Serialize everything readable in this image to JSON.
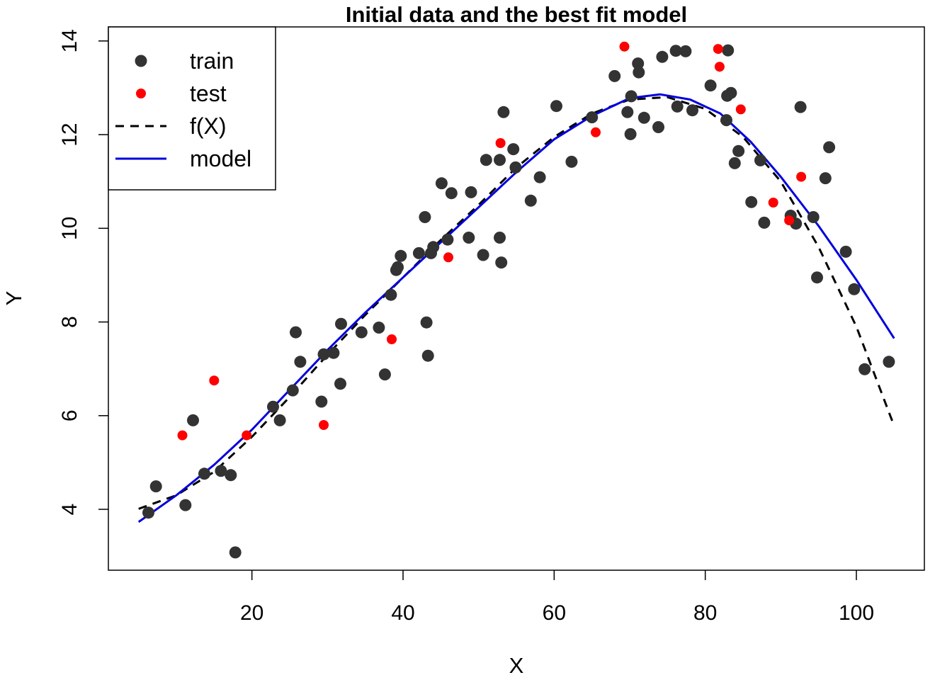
{
  "chart_data": {
    "type": "scatter",
    "title": "Initial data and the best fit model",
    "xlabel": "X",
    "ylabel": "Y",
    "xlim": [
      1,
      109
    ],
    "ylim": [
      2.7,
      14.3
    ],
    "x_ticks": [
      20,
      40,
      60,
      80,
      100
    ],
    "y_ticks": [
      4,
      6,
      8,
      10,
      12,
      14
    ],
    "grid": false,
    "legend_position": "top-left",
    "legend": [
      {
        "label": "train",
        "kind": "point",
        "color": "#333333"
      },
      {
        "label": "test",
        "kind": "point",
        "color": "#ff0000"
      },
      {
        "label": "f(X)",
        "kind": "dashed-line",
        "color": "#000000"
      },
      {
        "label": "model",
        "kind": "solid-line",
        "color": "#0000dd"
      }
    ],
    "series": [
      {
        "name": "train",
        "type": "scatter",
        "color": "#333333",
        "points": [
          [
            6.3,
            3.93
          ],
          [
            7.3,
            4.49
          ],
          [
            11.2,
            4.09
          ],
          [
            12.2,
            5.9
          ],
          [
            13.7,
            4.76
          ],
          [
            15.9,
            4.82
          ],
          [
            17.2,
            4.73
          ],
          [
            17.8,
            3.08
          ],
          [
            22.8,
            6.19
          ],
          [
            23.7,
            5.9
          ],
          [
            25.4,
            6.54
          ],
          [
            25.8,
            7.78
          ],
          [
            26.4,
            7.15
          ],
          [
            29.2,
            6.3
          ],
          [
            29.5,
            7.31
          ],
          [
            30.8,
            7.34
          ],
          [
            31.7,
            6.68
          ],
          [
            31.8,
            7.96
          ],
          [
            34.5,
            7.78
          ],
          [
            36.8,
            7.88
          ],
          [
            37.6,
            6.88
          ],
          [
            38.4,
            8.58
          ],
          [
            39.1,
            9.11
          ],
          [
            39.3,
            9.17
          ],
          [
            39.7,
            9.41
          ],
          [
            42.1,
            9.47
          ],
          [
            42.9,
            10.24
          ],
          [
            43.1,
            7.99
          ],
          [
            43.3,
            7.28
          ],
          [
            43.7,
            9.47
          ],
          [
            44.0,
            9.6
          ],
          [
            45.1,
            10.96
          ],
          [
            45.9,
            9.76
          ],
          [
            46.4,
            10.75
          ],
          [
            48.7,
            9.8
          ],
          [
            49.0,
            10.77
          ],
          [
            50.6,
            9.43
          ],
          [
            51.0,
            11.46
          ],
          [
            52.8,
            11.46
          ],
          [
            52.8,
            9.8
          ],
          [
            53.0,
            9.27
          ],
          [
            53.3,
            12.48
          ],
          [
            54.6,
            11.69
          ],
          [
            54.9,
            11.3
          ],
          [
            56.9,
            10.59
          ],
          [
            58.1,
            11.09
          ],
          [
            60.3,
            12.61
          ],
          [
            62.3,
            11.42
          ],
          [
            65.0,
            12.37
          ],
          [
            68.0,
            13.25
          ],
          [
            69.7,
            12.48
          ],
          [
            70.1,
            12.01
          ],
          [
            70.2,
            12.82
          ],
          [
            71.1,
            13.52
          ],
          [
            71.2,
            13.33
          ],
          [
            71.9,
            12.36
          ],
          [
            73.8,
            12.16
          ],
          [
            74.3,
            13.66
          ],
          [
            76.1,
            13.79
          ],
          [
            76.3,
            12.6
          ],
          [
            77.4,
            13.78
          ],
          [
            78.3,
            12.52
          ],
          [
            80.7,
            13.05
          ],
          [
            82.8,
            12.31
          ],
          [
            82.9,
            12.83
          ],
          [
            83.0,
            13.8
          ],
          [
            83.4,
            12.89
          ],
          [
            83.9,
            11.39
          ],
          [
            84.4,
            11.65
          ],
          [
            86.1,
            10.56
          ],
          [
            87.3,
            11.45
          ],
          [
            87.8,
            10.12
          ],
          [
            91.3,
            10.27
          ],
          [
            92.0,
            10.1
          ],
          [
            92.6,
            12.59
          ],
          [
            94.3,
            10.24
          ],
          [
            94.8,
            8.95
          ],
          [
            95.9,
            11.07
          ],
          [
            96.4,
            11.73
          ],
          [
            98.6,
            9.5
          ],
          [
            99.7,
            8.7
          ],
          [
            101.1,
            6.99
          ],
          [
            104.3,
            7.15
          ]
        ]
      },
      {
        "name": "test",
        "type": "scatter",
        "color": "#ff0000",
        "points": [
          [
            10.8,
            5.58
          ],
          [
            15.0,
            6.75
          ],
          [
            19.3,
            5.58
          ],
          [
            29.5,
            5.8
          ],
          [
            38.5,
            7.63
          ],
          [
            46.0,
            9.38
          ],
          [
            52.9,
            11.82
          ],
          [
            65.5,
            12.05
          ],
          [
            69.3,
            13.88
          ],
          [
            81.7,
            13.83
          ],
          [
            81.9,
            13.45
          ],
          [
            84.7,
            12.54
          ],
          [
            89.0,
            10.55
          ],
          [
            91.1,
            10.17
          ],
          [
            92.7,
            11.1
          ]
        ]
      },
      {
        "name": "f(X)",
        "type": "line",
        "style": "dashed",
        "color": "#000000",
        "points": [
          [
            5,
            4.01
          ],
          [
            10,
            4.3
          ],
          [
            15,
            4.8
          ],
          [
            20,
            5.55
          ],
          [
            25,
            6.4
          ],
          [
            30,
            7.3
          ],
          [
            35,
            8.15
          ],
          [
            40,
            8.95
          ],
          [
            45,
            9.75
          ],
          [
            50,
            10.5
          ],
          [
            55,
            11.3
          ],
          [
            60,
            11.95
          ],
          [
            65,
            12.45
          ],
          [
            70,
            12.75
          ],
          [
            75,
            12.8
          ],
          [
            80,
            12.55
          ],
          [
            85,
            11.95
          ],
          [
            90,
            11.0
          ],
          [
            95,
            9.6
          ],
          [
            100,
            7.9
          ],
          [
            105,
            5.78
          ]
        ]
      },
      {
        "name": "model",
        "type": "line",
        "style": "solid",
        "color": "#0000dd",
        "points": [
          [
            5,
            3.73
          ],
          [
            10,
            4.3
          ],
          [
            15,
            4.95
          ],
          [
            20,
            5.7
          ],
          [
            25,
            6.55
          ],
          [
            30,
            7.4
          ],
          [
            35,
            8.2
          ],
          [
            40,
            8.95
          ],
          [
            45,
            9.7
          ],
          [
            50,
            10.45
          ],
          [
            55,
            11.2
          ],
          [
            60,
            11.9
          ],
          [
            65,
            12.4
          ],
          [
            70,
            12.78
          ],
          [
            74,
            12.86
          ],
          [
            78,
            12.75
          ],
          [
            82,
            12.45
          ],
          [
            86,
            11.85
          ],
          [
            90,
            11.1
          ],
          [
            95,
            10.05
          ],
          [
            100,
            8.9
          ],
          [
            105,
            7.65
          ]
        ]
      }
    ]
  }
}
